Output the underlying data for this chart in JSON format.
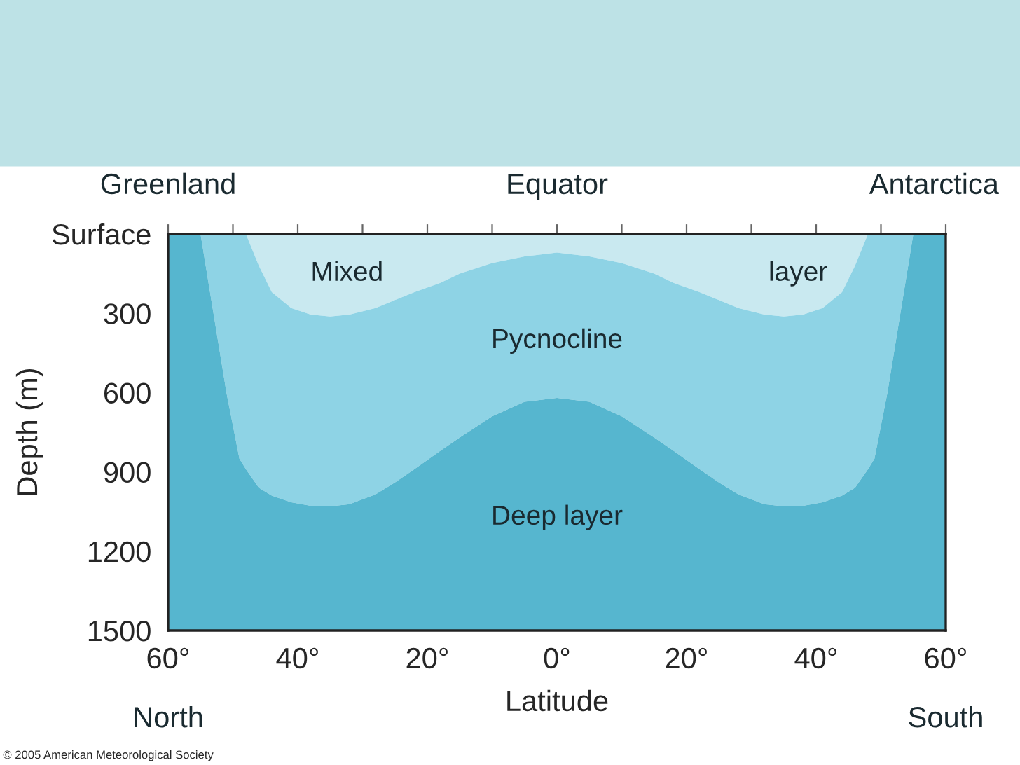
{
  "chart_data": {
    "type": "area",
    "ylabel": "Depth (m)",
    "xlabel": "Latitude",
    "annotations": [
      "Greenland",
      "Equator",
      "Antarctica",
      "Mixed",
      "layer",
      "Pycnocline",
      "Deep layer",
      "North",
      "South",
      "© 2005 American Meteorological Society"
    ],
    "stacked": true,
    "x": [
      -60,
      -55,
      -53,
      -51,
      -49,
      -48,
      -46,
      -44,
      -41,
      -38,
      -35,
      -32,
      -28,
      -25,
      -22,
      -18,
      -15,
      -10,
      -5,
      0,
      5,
      10,
      15,
      18,
      22,
      25,
      28,
      32,
      35,
      38,
      41,
      44,
      46,
      48,
      49,
      51,
      53,
      55,
      60
    ],
    "series": [
      {
        "name": null,
        "color": "#c9e9f0",
        "values": [
          0,
          0,
          0,
          0,
          0,
          0,
          120,
          220,
          280,
          305,
          312,
          305,
          280,
          250,
          220,
          185,
          150,
          110,
          85,
          70,
          85,
          110,
          150,
          185,
          220,
          250,
          280,
          305,
          312,
          305,
          280,
          220,
          120,
          0,
          0,
          0,
          0,
          0,
          0
        ]
      },
      {
        "name": null,
        "color": "#8ed3e5",
        "values": [
          0,
          0,
          300,
          600,
          850,
          890,
          840,
          770,
          735,
          723,
          718,
          717,
          705,
          690,
          670,
          635,
          620,
          580,
          550,
          550,
          550,
          580,
          620,
          635,
          670,
          690,
          705,
          717,
          718,
          723,
          735,
          770,
          840,
          890,
          850,
          600,
          300,
          0,
          0
        ]
      },
      {
        "name": null,
        "color": "#56b6cf",
        "values": [
          1500,
          1500,
          1200,
          900,
          650,
          610,
          540,
          510,
          485,
          472,
          470,
          478,
          515,
          560,
          610,
          680,
          730,
          810,
          865,
          880,
          865,
          810,
          730,
          680,
          610,
          560,
          515,
          478,
          470,
          472,
          485,
          510,
          540,
          610,
          650,
          900,
          1200,
          1500,
          1500
        ]
      }
    ],
    "xlim": [
      -60,
      60
    ],
    "xticks": [
      {
        "value": -60,
        "label": "60°"
      },
      {
        "value": -50,
        "label": null
      },
      {
        "value": -40,
        "label": "40°"
      },
      {
        "value": -30,
        "label": null
      },
      {
        "value": -20,
        "label": "20°"
      },
      {
        "value": -10,
        "label": null
      },
      {
        "value": 0,
        "label": "0°"
      },
      {
        "value": 10,
        "label": null
      },
      {
        "value": 20,
        "label": "20°"
      },
      {
        "value": 30,
        "label": null
      },
      {
        "value": 40,
        "label": "40°"
      },
      {
        "value": 50,
        "label": null
      },
      {
        "value": 60,
        "label": "60°"
      }
    ],
    "ylim": [
      1500,
      0
    ],
    "yticks": [
      {
        "value": 0,
        "label": "Surface"
      },
      300,
      600,
      900,
      1200,
      1500
    ],
    "legend": false
  }
}
